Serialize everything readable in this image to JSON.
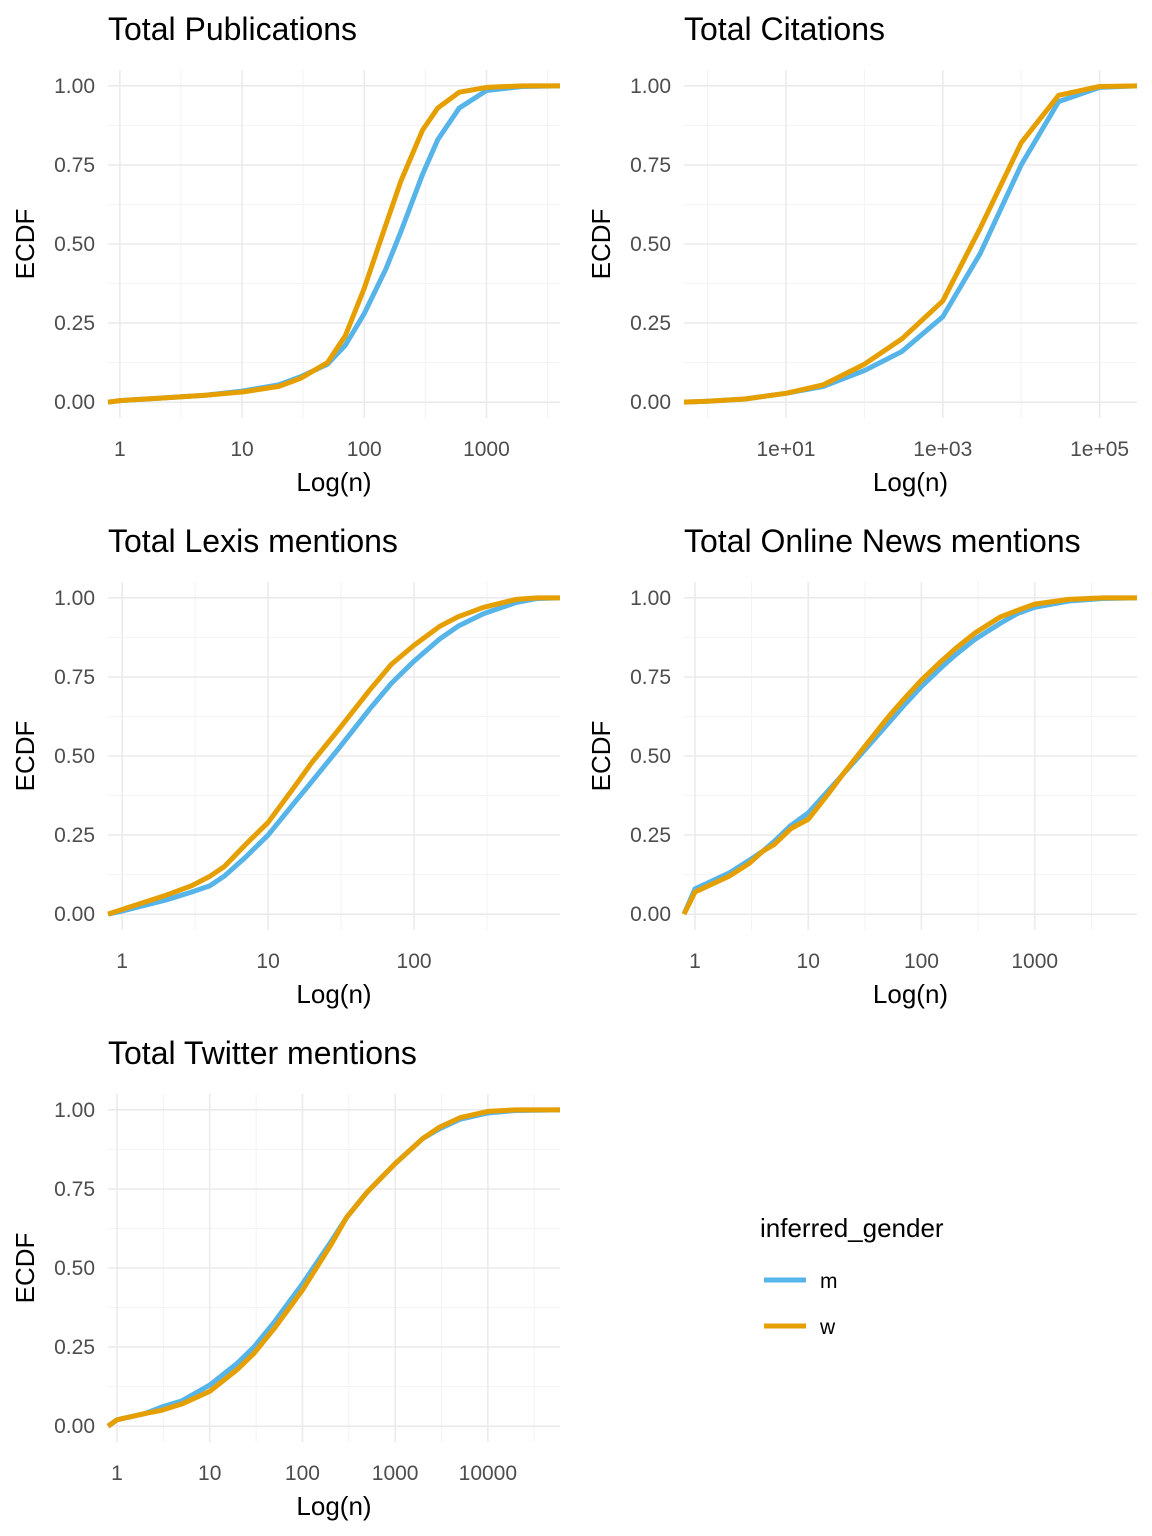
{
  "chart_data": [
    {
      "type": "line",
      "title": "Total Publications",
      "xlabel": "Log(n)",
      "ylabel": "ECDF",
      "x_scale": "log10",
      "xlim": [
        0.8,
        4000
      ],
      "ylim": [
        0,
        1
      ],
      "x_ticks": [
        {
          "value": 1,
          "label": "1"
        },
        {
          "value": 10,
          "label": "10"
        },
        {
          "value": 100,
          "label": "100"
        },
        {
          "value": 1000,
          "label": "1000"
        }
      ],
      "y_ticks": [
        {
          "value": 0,
          "label": "0.00"
        },
        {
          "value": 0.25,
          "label": "0.25"
        },
        {
          "value": 0.5,
          "label": "0.50"
        },
        {
          "value": 0.75,
          "label": "0.75"
        },
        {
          "value": 1,
          "label": "1.00"
        }
      ],
      "series": [
        {
          "name": "m",
          "color": "#56B4E9",
          "x": [
            0.8,
            1,
            2,
            5,
            10,
            20,
            30,
            50,
            70,
            100,
            150,
            200,
            300,
            400,
            600,
            1000,
            2000,
            4000
          ],
          "y": [
            0,
            0.005,
            0.012,
            0.022,
            0.035,
            0.055,
            0.08,
            0.12,
            0.18,
            0.28,
            0.42,
            0.54,
            0.72,
            0.83,
            0.93,
            0.985,
            0.998,
            1.0
          ]
        },
        {
          "name": "w",
          "color": "#E69F00",
          "x": [
            0.8,
            1,
            2,
            5,
            10,
            20,
            30,
            50,
            70,
            100,
            150,
            200,
            300,
            400,
            600,
            1000,
            2000,
            4000
          ],
          "y": [
            0,
            0.005,
            0.012,
            0.022,
            0.032,
            0.05,
            0.075,
            0.125,
            0.21,
            0.36,
            0.56,
            0.7,
            0.86,
            0.93,
            0.98,
            0.995,
            1.0,
            1.0
          ]
        }
      ]
    },
    {
      "type": "line",
      "title": "Total Citations",
      "xlabel": "Log(n)",
      "ylabel": "ECDF",
      "x_scale": "log10",
      "xlim": [
        0.5,
        300000
      ],
      "ylim": [
        0,
        1
      ],
      "x_ticks": [
        {
          "value": 10,
          "label": "1e+01"
        },
        {
          "value": 1000,
          "label": "1e+03"
        },
        {
          "value": 100000,
          "label": "1e+05"
        }
      ],
      "y_ticks": [
        {
          "value": 0,
          "label": "0.00"
        },
        {
          "value": 0.25,
          "label": "0.25"
        },
        {
          "value": 0.5,
          "label": "0.50"
        },
        {
          "value": 0.75,
          "label": "0.75"
        },
        {
          "value": 1,
          "label": "1.00"
        }
      ],
      "series": [
        {
          "name": "m",
          "color": "#56B4E9",
          "x": [
            0.5,
            1,
            3,
            10,
            30,
            100,
            300,
            1000,
            3000,
            10000,
            30000,
            100000,
            300000
          ],
          "y": [
            0,
            0.003,
            0.01,
            0.028,
            0.05,
            0.1,
            0.16,
            0.27,
            0.47,
            0.75,
            0.95,
            0.995,
            1.0
          ]
        },
        {
          "name": "w",
          "color": "#E69F00",
          "x": [
            0.5,
            1,
            3,
            10,
            30,
            100,
            300,
            1000,
            3000,
            10000,
            30000,
            100000,
            300000
          ],
          "y": [
            0,
            0.003,
            0.01,
            0.028,
            0.055,
            0.12,
            0.2,
            0.32,
            0.55,
            0.82,
            0.97,
            0.998,
            1.0
          ]
        }
      ]
    },
    {
      "type": "line",
      "title": "Total Lexis mentions",
      "xlabel": "Log(n)",
      "ylabel": "ECDF",
      "x_scale": "log10",
      "xlim": [
        0.8,
        1000
      ],
      "ylim": [
        0,
        1
      ],
      "x_ticks": [
        {
          "value": 1,
          "label": "1"
        },
        {
          "value": 10,
          "label": "10"
        },
        {
          "value": 100,
          "label": "100"
        }
      ],
      "y_ticks": [
        {
          "value": 0,
          "label": "0.00"
        },
        {
          "value": 0.25,
          "label": "0.25"
        },
        {
          "value": 0.5,
          "label": "0.50"
        },
        {
          "value": 0.75,
          "label": "0.75"
        },
        {
          "value": 1,
          "label": "1.00"
        }
      ],
      "series": [
        {
          "name": "m",
          "color": "#56B4E9",
          "x": [
            0.8,
            1,
            2,
            3,
            4,
            5,
            7,
            10,
            15,
            20,
            30,
            50,
            70,
            100,
            150,
            200,
            300,
            500,
            700,
            1000
          ],
          "y": [
            0,
            0.01,
            0.045,
            0.07,
            0.09,
            0.12,
            0.18,
            0.25,
            0.35,
            0.42,
            0.52,
            0.65,
            0.73,
            0.8,
            0.87,
            0.91,
            0.95,
            0.985,
            0.998,
            1.0
          ]
        },
        {
          "name": "w",
          "color": "#E69F00",
          "x": [
            0.8,
            1,
            2,
            3,
            4,
            5,
            7,
            10,
            15,
            20,
            30,
            50,
            70,
            100,
            150,
            200,
            300,
            500,
            700,
            1000
          ],
          "y": [
            0,
            0.015,
            0.06,
            0.09,
            0.12,
            0.15,
            0.22,
            0.29,
            0.4,
            0.48,
            0.58,
            0.71,
            0.79,
            0.85,
            0.91,
            0.94,
            0.97,
            0.995,
            1.0,
            1.0
          ]
        }
      ]
    },
    {
      "type": "line",
      "title": "Total Online News mentions",
      "xlabel": "Log(n)",
      "ylabel": "ECDF",
      "x_scale": "log10",
      "xlim": [
        0.8,
        8000
      ],
      "ylim": [
        0,
        1
      ],
      "x_ticks": [
        {
          "value": 1,
          "label": "1"
        },
        {
          "value": 10,
          "label": "10"
        },
        {
          "value": 100,
          "label": "100"
        },
        {
          "value": 1000,
          "label": "1000"
        }
      ],
      "y_ticks": [
        {
          "value": 0,
          "label": "0.00"
        },
        {
          "value": 0.25,
          "label": "0.25"
        },
        {
          "value": 0.5,
          "label": "0.50"
        },
        {
          "value": 0.75,
          "label": "0.75"
        },
        {
          "value": 1,
          "label": "1.00"
        }
      ],
      "series": [
        {
          "name": "m",
          "color": "#56B4E9",
          "x": [
            0.8,
            1,
            2,
            3,
            4,
            5,
            7,
            10,
            15,
            20,
            30,
            50,
            70,
            100,
            150,
            200,
            300,
            500,
            700,
            1000,
            2000,
            4000,
            8000
          ],
          "y": [
            0,
            0.08,
            0.13,
            0.17,
            0.2,
            0.23,
            0.28,
            0.32,
            0.39,
            0.44,
            0.51,
            0.6,
            0.66,
            0.72,
            0.78,
            0.82,
            0.87,
            0.92,
            0.95,
            0.97,
            0.99,
            0.998,
            1.0
          ]
        },
        {
          "name": "w",
          "color": "#E69F00",
          "x": [
            0.8,
            1,
            2,
            3,
            4,
            5,
            7,
            10,
            15,
            20,
            30,
            50,
            70,
            100,
            150,
            200,
            300,
            500,
            700,
            1000,
            2000,
            4000,
            8000
          ],
          "y": [
            0,
            0.07,
            0.12,
            0.16,
            0.2,
            0.22,
            0.27,
            0.3,
            0.38,
            0.44,
            0.52,
            0.62,
            0.68,
            0.74,
            0.8,
            0.84,
            0.89,
            0.94,
            0.96,
            0.98,
            0.995,
            1.0,
            1.0
          ]
        }
      ]
    },
    {
      "type": "line",
      "title": "Total Twitter mentions",
      "xlabel": "Log(n)",
      "ylabel": "ECDF",
      "x_scale": "log10",
      "xlim": [
        0.8,
        60000
      ],
      "ylim": [
        0,
        1
      ],
      "x_ticks": [
        {
          "value": 1,
          "label": "1"
        },
        {
          "value": 10,
          "label": "10"
        },
        {
          "value": 100,
          "label": "100"
        },
        {
          "value": 1000,
          "label": "1000"
        },
        {
          "value": 10000,
          "label": "10000"
        }
      ],
      "y_ticks": [
        {
          "value": 0,
          "label": "0.00"
        },
        {
          "value": 0.25,
          "label": "0.25"
        },
        {
          "value": 0.5,
          "label": "0.50"
        },
        {
          "value": 0.75,
          "label": "0.75"
        },
        {
          "value": 1,
          "label": "1.00"
        }
      ],
      "series": [
        {
          "name": "m",
          "color": "#56B4E9",
          "x": [
            0.8,
            1,
            2,
            3,
            5,
            10,
            20,
            30,
            50,
            100,
            200,
            300,
            500,
            1000,
            2000,
            3000,
            5000,
            10000,
            20000,
            60000
          ],
          "y": [
            0,
            0.02,
            0.04,
            0.06,
            0.08,
            0.13,
            0.2,
            0.25,
            0.33,
            0.45,
            0.58,
            0.66,
            0.74,
            0.83,
            0.91,
            0.94,
            0.97,
            0.99,
            0.998,
            1.0
          ]
        },
        {
          "name": "w",
          "color": "#E69F00",
          "x": [
            0.8,
            1,
            2,
            3,
            5,
            10,
            20,
            30,
            50,
            100,
            200,
            300,
            500,
            1000,
            2000,
            3000,
            5000,
            10000,
            20000,
            60000
          ],
          "y": [
            0,
            0.02,
            0.04,
            0.05,
            0.07,
            0.11,
            0.18,
            0.23,
            0.31,
            0.43,
            0.57,
            0.66,
            0.74,
            0.83,
            0.91,
            0.945,
            0.975,
            0.995,
            1.0,
            1.0
          ]
        }
      ]
    }
  ],
  "legend": {
    "title": "inferred_gender",
    "items": [
      {
        "label": "m",
        "color": "#56B4E9"
      },
      {
        "label": "w",
        "color": "#E69F00"
      }
    ]
  }
}
